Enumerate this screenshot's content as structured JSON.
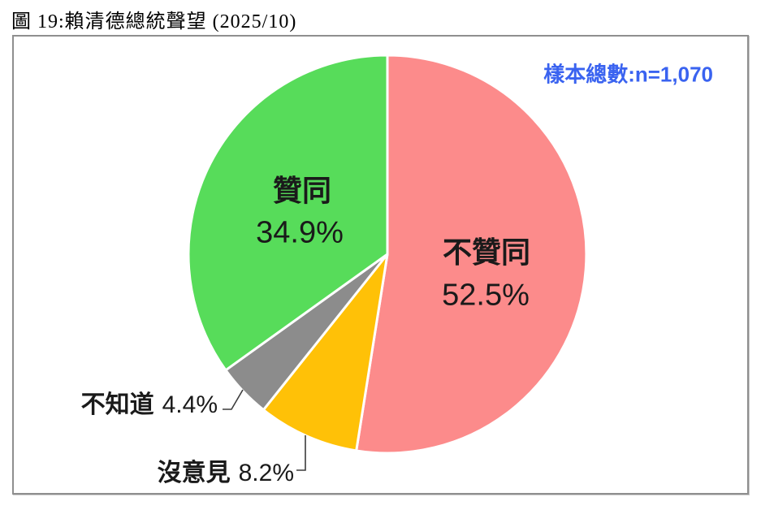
{
  "figure": {
    "title": "圖 19:賴清德總統聲望 (2025/10)",
    "sample_note": "樣本總數:n=1,070",
    "sample_note_color": "#3A63F0",
    "frame_border_color": "#8f8f8f"
  },
  "chart_data": {
    "type": "pie",
    "title": "賴清德總統聲望 (2025/10)",
    "sample_size_text": "樣本總數:n=1,070",
    "sample_n": 1070,
    "start_angle_deg": 0,
    "direction": "clockwise",
    "total": 100,
    "legend": "none",
    "slices": [
      {
        "key": "disapprove",
        "label": "不贊同",
        "value": 52.5,
        "pct_text": "52.5%",
        "color": "#FC8B8B",
        "label_placement": "inside"
      },
      {
        "key": "no-opinion",
        "label": "沒意見",
        "value": 8.2,
        "pct_text": "8.2%",
        "color": "#FFC107",
        "label_placement": "outside"
      },
      {
        "key": "dont-know",
        "label": "不知道",
        "value": 4.4,
        "pct_text": "4.4%",
        "color": "#8C8C8C",
        "label_placement": "outside"
      },
      {
        "key": "approve",
        "label": "贊同",
        "value": 34.9,
        "pct_text": "34.9%",
        "color": "#57DC5A",
        "label_placement": "inside"
      }
    ]
  }
}
